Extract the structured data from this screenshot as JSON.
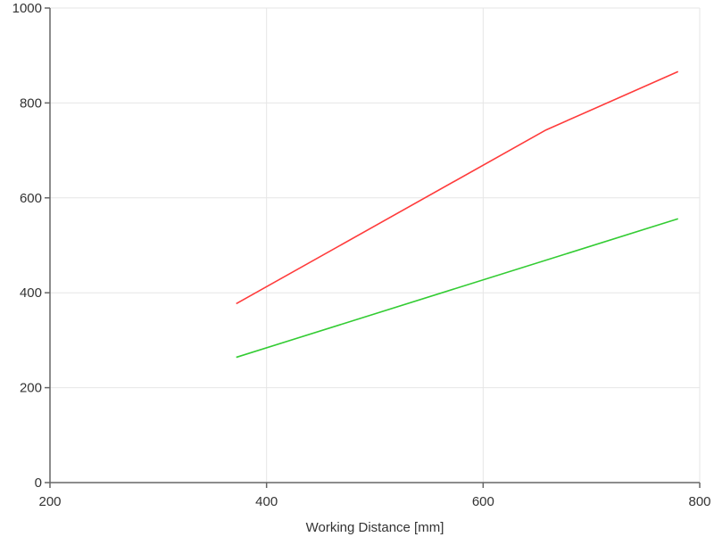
{
  "chart_data": {
    "type": "line",
    "title": "",
    "xlabel": "Working Distance [mm]",
    "ylabel": "",
    "xlim": [
      200,
      800
    ],
    "ylim": [
      0,
      1000
    ],
    "xticks": [
      200,
      400,
      600,
      800
    ],
    "yticks": [
      0,
      200,
      400,
      600,
      800,
      1000
    ],
    "grid": true,
    "legend": "none",
    "series": [
      {
        "color": "#ff3b3b",
        "x": [
          372,
          658,
          780
        ],
        "y": [
          377,
          743,
          866
        ]
      },
      {
        "color": "#33cc33",
        "x": [
          372,
          780
        ],
        "y": [
          264,
          556
        ]
      }
    ]
  }
}
